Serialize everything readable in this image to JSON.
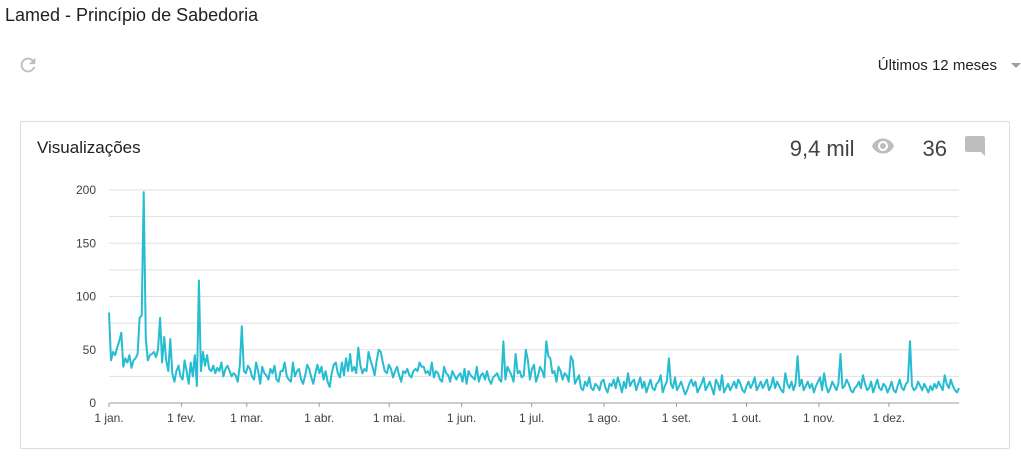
{
  "header": {
    "title": "Lamed - Princípio de Sabedoria"
  },
  "toolbar": {
    "refresh_icon": "refresh-icon",
    "period_label": "Últimos 12 meses",
    "period_icon": "chevron-down-icon"
  },
  "card": {
    "title": "Visualizações",
    "views_total": "9,4 mil",
    "views_icon": "eye-icon",
    "comments_total": "36",
    "comments_icon": "comment-icon"
  },
  "colors": {
    "line": "#26bcd1",
    "grid": "#e0e0e0",
    "axis": "#9e9e9e",
    "icon": "#bdbdbd"
  },
  "chart_data": {
    "type": "line",
    "title": "Visualizações",
    "ylim": [
      0,
      200
    ],
    "yticks": [
      "0",
      "50",
      "100",
      "150",
      "200"
    ],
    "xticks": [
      "1 jan.",
      "1 fev.",
      "1 mar.",
      "1 abr.",
      "1 mai.",
      "1 jun.",
      "1 jul.",
      "1 ago.",
      "1 set.",
      "1 out.",
      "1 nov.",
      "1 dez."
    ],
    "x_start": "2023-01-01",
    "x_end": "2023-12-31",
    "series": [
      {
        "values": [
          85,
          40,
          48,
          45,
          52,
          58,
          66,
          34,
          42,
          38,
          45,
          33,
          40,
          42,
          46,
          80,
          82,
          198,
          60,
          40,
          45,
          46,
          48,
          43,
          50,
          80,
          38,
          62,
          40,
          30,
          60,
          28,
          20,
          30,
          35,
          25,
          22,
          40,
          30,
          18,
          38,
          25,
          45,
          16,
          115,
          30,
          48,
          35,
          45,
          32,
          30,
          35,
          28,
          33,
          30,
          38,
          25,
          32,
          35,
          30,
          25,
          28,
          26,
          20,
          35,
          72,
          30,
          28,
          35,
          32,
          25,
          22,
          38,
          30,
          18,
          34,
          28,
          26,
          22,
          32,
          28,
          35,
          22,
          20,
          30,
          30,
          38,
          25,
          22,
          20,
          38,
          25,
          30,
          32,
          22,
          18,
          26,
          36,
          32,
          24,
          18,
          28,
          36,
          28,
          34,
          22,
          30,
          20,
          15,
          28,
          36,
          38,
          28,
          24,
          38,
          26,
          42,
          30,
          46,
          30,
          34,
          28,
          52,
          36,
          28,
          32,
          30,
          48,
          40,
          34,
          26,
          40,
          50,
          48,
          38,
          30,
          28,
          36,
          32,
          24,
          30,
          34,
          26,
          20,
          30,
          28,
          32,
          26,
          24,
          30,
          32,
          30,
          38,
          34,
          34,
          28,
          30,
          26,
          38,
          24,
          30,
          28,
          22,
          20,
          34,
          28,
          26,
          20,
          30,
          26,
          22,
          26,
          28,
          20,
          32,
          18,
          30,
          26,
          24,
          22,
          34,
          20,
          26,
          28,
          22,
          30,
          22,
          18,
          24,
          26,
          28,
          22,
          20,
          58,
          22,
          34,
          30,
          26,
          20,
          46,
          28,
          30,
          24,
          26,
          50,
          40,
          22,
          32,
          36,
          20,
          26,
          34,
          30,
          24,
          58,
          44,
          42,
          28,
          30,
          20,
          34,
          30,
          22,
          28,
          26,
          20,
          44,
          40,
          18,
          22,
          26,
          14,
          12,
          20,
          16,
          24,
          14,
          12,
          18,
          16,
          12,
          20,
          22,
          14,
          10,
          18,
          16,
          22,
          14,
          24,
          18,
          10,
          20,
          14,
          28,
          16,
          20,
          22,
          12,
          18,
          24,
          14,
          20,
          10,
          16,
          22,
          14,
          12,
          18,
          20,
          26,
          10,
          16,
          20,
          42,
          18,
          14,
          24,
          12,
          16,
          20,
          14,
          8,
          12,
          18,
          22,
          16,
          20,
          10,
          14,
          18,
          24,
          12,
          16,
          20,
          14,
          8,
          22,
          18,
          12,
          26,
          10,
          14,
          18,
          12,
          16,
          20,
          14,
          22,
          18,
          12,
          10,
          16,
          20,
          14,
          18,
          24,
          12,
          16,
          20,
          14,
          18,
          22,
          12,
          16,
          24,
          14,
          20,
          16,
          12,
          10,
          28,
          18,
          14,
          20,
          12,
          18,
          44,
          16,
          22,
          12,
          16,
          20,
          14,
          18,
          10,
          16,
          20,
          24,
          12,
          28,
          16,
          10,
          14,
          20,
          16,
          12,
          18,
          46,
          14,
          16,
          22,
          18,
          12,
          10,
          14,
          16,
          20,
          14,
          26,
          18,
          12,
          14,
          20,
          10,
          16,
          22,
          14,
          12,
          18,
          16,
          10,
          14,
          20,
          12,
          10,
          16,
          22,
          14,
          12,
          18,
          20,
          58,
          16,
          12,
          14,
          20,
          16,
          12,
          18,
          14,
          10,
          16,
          12,
          18,
          14,
          20,
          16,
          12,
          26,
          18,
          14,
          22,
          16,
          12,
          10,
          14
        ]
      }
    ]
  }
}
